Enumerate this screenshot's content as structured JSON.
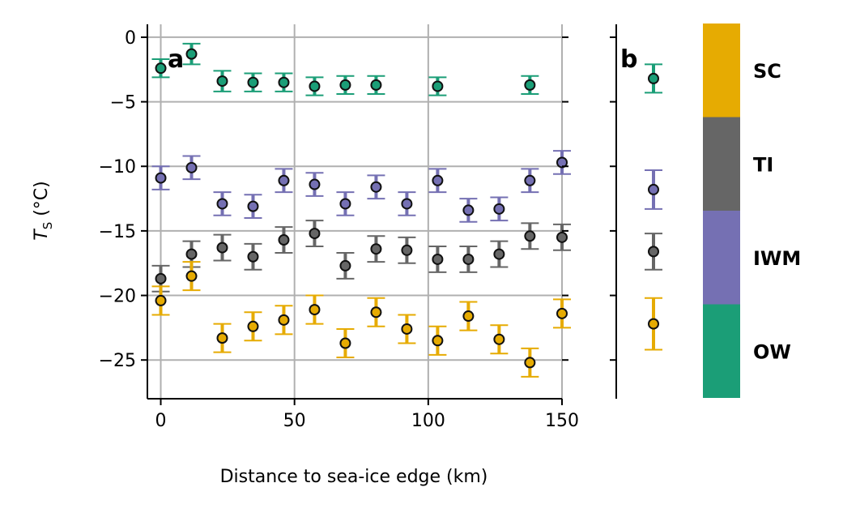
{
  "chart_data": [
    {
      "panel_label": "a",
      "type": "scatter",
      "xlabel": "Distance to sea-ice edge (km)",
      "ylabel_main": "T",
      "ylabel_sub": "S",
      "ylabel_unit": " (°C)",
      "xlim": [
        -5,
        150
      ],
      "ylim": [
        -28,
        1
      ],
      "xticks": [
        0,
        50,
        100,
        150
      ],
      "yticks": [
        0,
        -5,
        -10,
        -15,
        -20,
        -25
      ],
      "ytick_labels": [
        "0",
        "−5",
        "−10",
        "−15",
        "−20",
        "−25"
      ],
      "grid": true,
      "series": [
        {
          "key": "OW",
          "color": "#1b9e77",
          "x": [
            0,
            11.5,
            23,
            34.5,
            46,
            57.5,
            69,
            80.5,
            103.5,
            138
          ],
          "y": [
            -2.4,
            -1.3,
            -3.4,
            -3.5,
            -3.5,
            -3.8,
            -3.7,
            -3.7,
            -3.8,
            -3.7
          ],
          "err": [
            0.7,
            0.8,
            0.8,
            0.7,
            0.7,
            0.7,
            0.7,
            0.7,
            0.7,
            0.7
          ]
        },
        {
          "key": "IWM",
          "color": "#7570b3",
          "x": [
            0,
            11.5,
            23,
            34.5,
            46,
            57.5,
            69,
            80.5,
            92,
            103.5,
            115,
            126.5,
            138,
            150
          ],
          "y": [
            -10.9,
            -10.1,
            -12.9,
            -13.1,
            -11.1,
            -11.4,
            -12.9,
            -11.6,
            -12.9,
            -11.1,
            -13.4,
            -13.3,
            -11.1,
            -9.7
          ],
          "err": [
            0.9,
            0.9,
            0.9,
            0.9,
            0.9,
            0.9,
            0.9,
            0.9,
            0.9,
            0.9,
            0.9,
            0.9,
            0.9,
            0.9
          ]
        },
        {
          "key": "TI",
          "color": "#666666",
          "x": [
            0,
            11.5,
            23,
            34.5,
            46,
            57.5,
            69,
            80.5,
            92,
            103.5,
            115,
            126.5,
            138,
            150
          ],
          "y": [
            -18.7,
            -16.8,
            -16.3,
            -17.0,
            -15.7,
            -15.2,
            -17.7,
            -16.4,
            -16.5,
            -17.2,
            -17.2,
            -16.8,
            -15.4,
            -15.5
          ],
          "err": [
            1.0,
            1.0,
            1.0,
            1.0,
            1.0,
            1.0,
            1.0,
            1.0,
            1.0,
            1.0,
            1.0,
            1.0,
            1.0,
            1.0
          ]
        },
        {
          "key": "SC",
          "color": "#e6ab02",
          "x": [
            0,
            11.5,
            23,
            34.5,
            46,
            57.5,
            69,
            80.5,
            92,
            103.5,
            115,
            126.5,
            138,
            150
          ],
          "y": [
            -20.4,
            -18.5,
            -23.3,
            -22.4,
            -21.9,
            -21.1,
            -23.7,
            -21.3,
            -22.6,
            -23.5,
            -21.6,
            -23.4,
            -25.2,
            -21.4
          ],
          "err": [
            1.1,
            1.1,
            1.1,
            1.1,
            1.1,
            1.1,
            1.1,
            1.1,
            1.1,
            1.1,
            1.1,
            1.1,
            1.1,
            1.1
          ]
        }
      ]
    },
    {
      "panel_label": "b",
      "type": "scatter",
      "ylim": [
        -28,
        1
      ],
      "series": [
        {
          "key": "OW",
          "color": "#1b9e77",
          "y": -3.2,
          "err": 1.1
        },
        {
          "key": "IWM",
          "color": "#7570b3",
          "y": -11.8,
          "err": 1.5
        },
        {
          "key": "TI",
          "color": "#666666",
          "y": -16.6,
          "err": 1.4
        },
        {
          "key": "SC",
          "color": "#e6ab02",
          "y": -22.2,
          "err": 2.0
        }
      ]
    }
  ],
  "legend": {
    "placement": "right",
    "items": [
      {
        "label": "SC",
        "color": "#e6ab02"
      },
      {
        "label": "TI",
        "color": "#666666"
      },
      {
        "label": "IWM",
        "color": "#7570b3"
      },
      {
        "label": "OW",
        "color": "#1b9e77"
      }
    ]
  }
}
